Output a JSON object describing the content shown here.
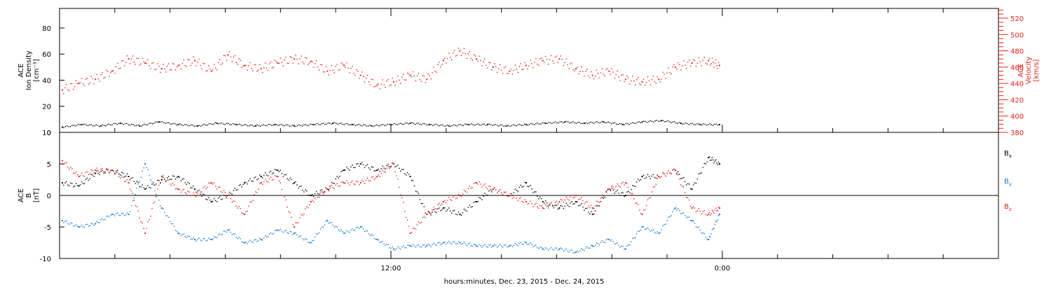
{
  "chart_data": [
    {
      "type": "scatter",
      "title": "",
      "xlabel": "hours:minutes, Dec. 23, 2015 - Dec. 24, 2015",
      "x_tick_labels": [
        "12:00",
        "0:00"
      ],
      "ylabel_left": [
        "ACE",
        "Ion Density",
        "[cm⁻³]"
      ],
      "ylabel_right": [
        "ACE",
        "Velocity",
        "[km/s]"
      ],
      "ylim_left": [
        0,
        95
      ],
      "ylim_right": [
        380,
        532
      ],
      "yticks_left": [
        0,
        20,
        40,
        60,
        80
      ],
      "yticks_right": [
        380,
        400,
        420,
        440,
        460,
        480,
        500,
        520
      ],
      "series": [
        {
          "name": "",
          "axis": "left",
          "color": "#000000",
          "x": [
            0.1,
            0.8,
            1.5,
            2.2,
            2.9,
            3.6,
            4.3,
            5.0,
            5.7,
            6.4,
            7.1,
            7.8,
            8.5,
            9.2,
            9.9,
            10.6,
            11.3,
            12.0,
            12.7,
            13.4,
            14.1,
            14.8,
            15.5,
            16.2,
            16.9,
            17.6,
            18.3,
            19.0,
            19.7,
            20.4,
            21.1,
            21.8,
            22.5,
            23.2,
            23.9
          ],
          "y": [
            4,
            6,
            5,
            7,
            5,
            8,
            6,
            5,
            7,
            6,
            5,
            6,
            5,
            6,
            7,
            6,
            5,
            6,
            7,
            6,
            5,
            6,
            6,
            5,
            6,
            7,
            8,
            7,
            8,
            6,
            8,
            9,
            7,
            6,
            6
          ]
        },
        {
          "name": "",
          "axis": "right",
          "color": "#e8211e",
          "x": [
            0.1,
            0.7,
            1.3,
            1.9,
            2.5,
            3.1,
            3.7,
            4.3,
            4.9,
            5.5,
            6.1,
            6.7,
            7.3,
            7.9,
            8.5,
            9.1,
            9.7,
            10.3,
            10.9,
            11.5,
            12.1,
            12.7,
            13.3,
            13.9,
            14.5,
            15.1,
            15.7,
            16.3,
            16.9,
            17.5,
            18.1,
            18.7,
            19.3,
            19.9,
            20.5,
            21.1,
            21.7,
            22.3,
            22.9,
            23.5,
            23.9
          ],
          "y": [
            432,
            440,
            445,
            455,
            470,
            465,
            458,
            462,
            468,
            455,
            475,
            462,
            458,
            465,
            470,
            467,
            455,
            462,
            450,
            438,
            442,
            450,
            445,
            468,
            480,
            470,
            460,
            455,
            462,
            468,
            470,
            458,
            450,
            455,
            445,
            442,
            445,
            460,
            465,
            468,
            462
          ]
        }
      ]
    },
    {
      "type": "scatter",
      "title": "",
      "xlabel": "hours:minutes, Dec. 23, 2015 - Dec. 24, 2015",
      "x_tick_labels": [
        "12:00",
        "0:00"
      ],
      "ylabel_left": [
        "ACE",
        "B",
        "[nT]"
      ],
      "ylim": [
        -10,
        10
      ],
      "yticks": [
        -10,
        -5,
        0,
        5,
        10
      ],
      "legend_position": "right",
      "series": [
        {
          "name": "Bx",
          "color": "#000000",
          "x": [
            0.1,
            0.7,
            1.3,
            1.9,
            2.5,
            3.1,
            3.7,
            4.3,
            4.9,
            5.5,
            6.1,
            6.7,
            7.3,
            7.9,
            8.5,
            9.1,
            9.7,
            10.3,
            10.9,
            11.5,
            12.1,
            12.7,
            13.3,
            13.9,
            14.5,
            15.1,
            15.7,
            16.3,
            16.9,
            17.5,
            18.1,
            18.7,
            19.3,
            19.9,
            20.5,
            21.1,
            21.7,
            22.3,
            22.9,
            23.5,
            23.9
          ],
          "y": [
            2,
            1.5,
            3.5,
            4,
            3,
            1,
            2.5,
            3,
            1,
            -1,
            0,
            2,
            3,
            4,
            2,
            0,
            1,
            4,
            5,
            4,
            5,
            3,
            -3,
            -2,
            -3,
            -1,
            1,
            0,
            2,
            -1,
            -2,
            -1,
            -3,
            1,
            0,
            3,
            3,
            4,
            1,
            6,
            5
          ]
        },
        {
          "name": "By",
          "color": "#1a7ad4",
          "x": [
            0.1,
            0.7,
            1.3,
            1.9,
            2.5,
            3.1,
            3.7,
            4.3,
            4.9,
            5.5,
            6.1,
            6.7,
            7.3,
            7.9,
            8.5,
            9.1,
            9.7,
            10.3,
            10.9,
            11.5,
            12.1,
            12.7,
            13.3,
            13.9,
            14.5,
            15.1,
            15.7,
            16.3,
            16.9,
            17.5,
            18.1,
            18.7,
            19.3,
            19.9,
            20.5,
            21.1,
            21.7,
            22.3,
            22.9,
            23.5,
            23.9
          ],
          "y": [
            -4,
            -5,
            -4.5,
            -3,
            -3,
            5,
            -2,
            -6,
            -7,
            -7,
            -5.5,
            -7.5,
            -7,
            -5.5,
            -6,
            -7.5,
            -4,
            -6,
            -5,
            -7,
            -8.5,
            -8,
            -8,
            -7.5,
            -7.5,
            -8,
            -8,
            -8,
            -7.5,
            -8.5,
            -8.5,
            -9,
            -8,
            -7,
            -8.5,
            -5,
            -6,
            -2,
            -4,
            -7,
            -3
          ]
        },
        {
          "name": "Bz",
          "color": "#e8211e",
          "x": [
            0.1,
            0.7,
            1.3,
            1.9,
            2.5,
            3.1,
            3.7,
            4.3,
            4.9,
            5.5,
            6.1,
            6.7,
            7.3,
            7.9,
            8.5,
            9.1,
            9.7,
            10.3,
            10.9,
            11.5,
            12.1,
            12.7,
            13.3,
            13.9,
            14.5,
            15.1,
            15.7,
            16.3,
            16.9,
            17.5,
            18.1,
            18.7,
            19.3,
            19.9,
            20.5,
            21.1,
            21.7,
            22.3,
            22.9,
            23.5,
            23.9
          ],
          "y": [
            5.5,
            3,
            4,
            4,
            2,
            -6,
            3,
            1,
            0,
            2,
            0,
            -3,
            2,
            3,
            -5,
            -1,
            1,
            2,
            2,
            3,
            5,
            -6,
            -3,
            -1,
            0,
            2,
            1,
            0,
            -1,
            -2,
            -1,
            0,
            -2,
            1,
            2,
            -3,
            3,
            4,
            -2,
            -3,
            -2
          ]
        }
      ]
    }
  ]
}
